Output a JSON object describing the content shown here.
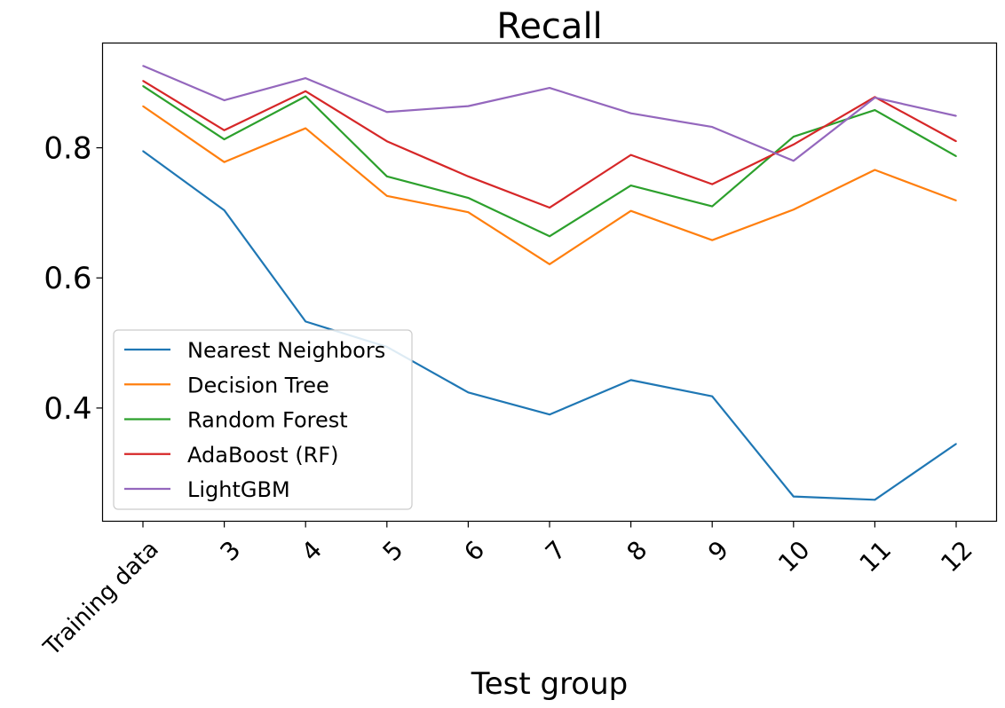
{
  "chart_data": {
    "type": "line",
    "title": "Recall",
    "xlabel": "Test group",
    "ylabel": "",
    "categories": [
      "Training data",
      "3",
      "4",
      "5",
      "6",
      "7",
      "8",
      "9",
      "10",
      "11",
      "12"
    ],
    "yticks": [
      "0.4",
      "0.6",
      "0.8"
    ],
    "ylim": [
      0.226,
      0.961
    ],
    "grid": false,
    "legend_position": "lower-left",
    "series": [
      {
        "name": "Nearest Neighbors",
        "color": "#1f77b4",
        "values": [
          0.795,
          0.704,
          0.533,
          0.494,
          0.424,
          0.39,
          0.443,
          0.418,
          0.264,
          0.259,
          0.345
        ]
      },
      {
        "name": "Decision Tree",
        "color": "#ff7f0e",
        "values": [
          0.864,
          0.778,
          0.83,
          0.726,
          0.701,
          0.621,
          0.703,
          0.658,
          0.705,
          0.766,
          0.719
        ]
      },
      {
        "name": "Random Forest",
        "color": "#2ca02c",
        "values": [
          0.895,
          0.813,
          0.879,
          0.756,
          0.723,
          0.664,
          0.742,
          0.71,
          0.817,
          0.858,
          0.787
        ]
      },
      {
        "name": "AdaBoost (RF)",
        "color": "#d62728",
        "values": [
          0.903,
          0.827,
          0.887,
          0.81,
          0.756,
          0.708,
          0.789,
          0.744,
          0.805,
          0.878,
          0.81
        ]
      },
      {
        "name": "LightGBM",
        "color": "#9467bd",
        "values": [
          0.926,
          0.873,
          0.907,
          0.855,
          0.864,
          0.892,
          0.853,
          0.832,
          0.78,
          0.877,
          0.849
        ]
      }
    ]
  }
}
